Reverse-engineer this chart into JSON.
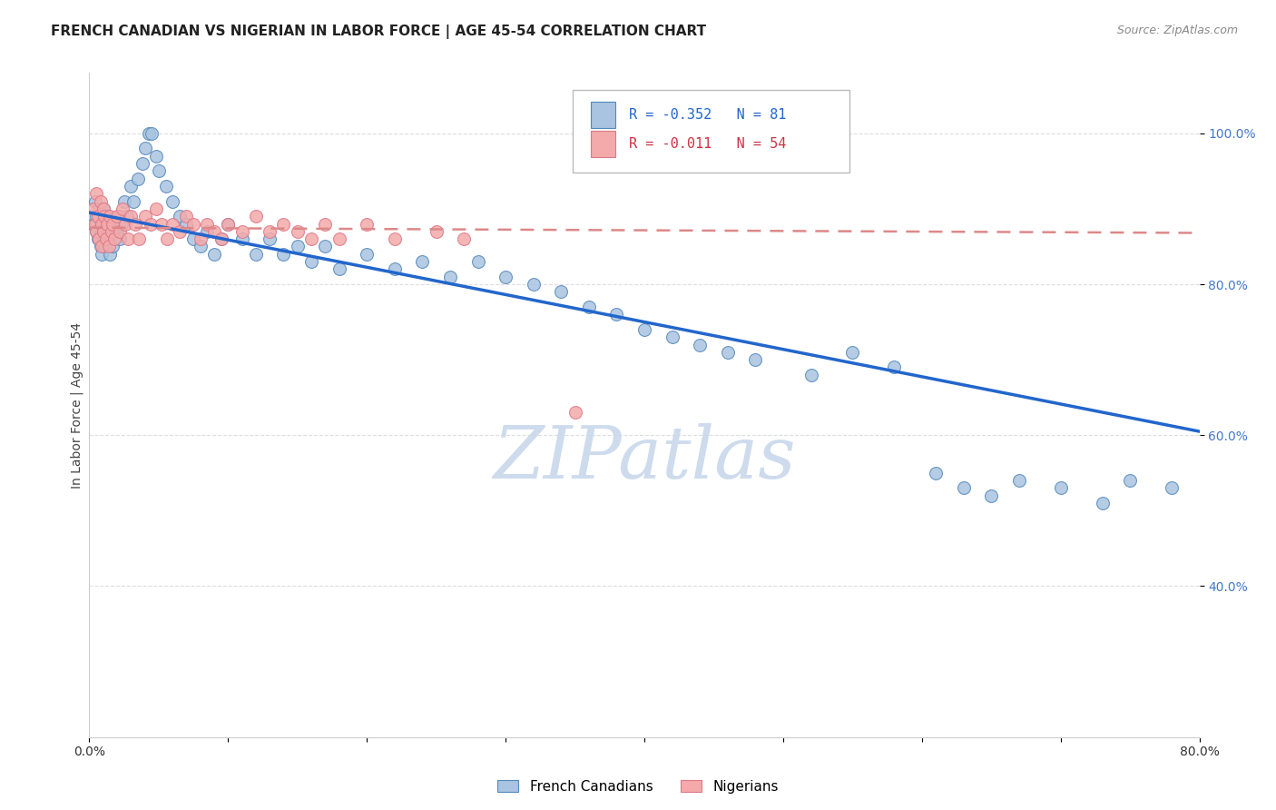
{
  "title": "FRENCH CANADIAN VS NIGERIAN IN LABOR FORCE | AGE 45-54 CORRELATION CHART",
  "source": "Source: ZipAtlas.com",
  "ylabel": "In Labor Force | Age 45-54",
  "xlim": [
    0.0,
    0.8
  ],
  "ylim": [
    0.2,
    1.08
  ],
  "blue_R": -0.352,
  "blue_N": 81,
  "pink_R": -0.011,
  "pink_N": 54,
  "blue_color": "#A8C4E0",
  "pink_color": "#F4AAAA",
  "blue_edge_color": "#5588BB",
  "pink_edge_color": "#DD7788",
  "blue_line_color": "#2266CC",
  "pink_line_color": "#DD8888",
  "watermark_color": "#C8D8EC",
  "legend_label_blue": "French Canadians",
  "legend_label_pink": "Nigerians",
  "blue_scatter_x": [
    0.003,
    0.004,
    0.005,
    0.005,
    0.006,
    0.007,
    0.008,
    0.008,
    0.009,
    0.009,
    0.01,
    0.01,
    0.011,
    0.011,
    0.012,
    0.013,
    0.014,
    0.015,
    0.015,
    0.016,
    0.017,
    0.018,
    0.02,
    0.021,
    0.022,
    0.023,
    0.025,
    0.027,
    0.03,
    0.032,
    0.035,
    0.038,
    0.04,
    0.043,
    0.045,
    0.048,
    0.05,
    0.055,
    0.06,
    0.065,
    0.07,
    0.075,
    0.08,
    0.085,
    0.09,
    0.095,
    0.1,
    0.11,
    0.12,
    0.13,
    0.14,
    0.15,
    0.16,
    0.17,
    0.18,
    0.2,
    0.22,
    0.24,
    0.26,
    0.28,
    0.3,
    0.32,
    0.34,
    0.36,
    0.38,
    0.4,
    0.42,
    0.44,
    0.46,
    0.48,
    0.52,
    0.55,
    0.58,
    0.61,
    0.63,
    0.65,
    0.67,
    0.7,
    0.73,
    0.75,
    0.78
  ],
  "blue_scatter_y": [
    0.88,
    0.91,
    0.87,
    0.89,
    0.86,
    0.9,
    0.88,
    0.85,
    0.87,
    0.84,
    0.9,
    0.86,
    0.88,
    0.85,
    0.87,
    0.89,
    0.86,
    0.88,
    0.84,
    0.87,
    0.85,
    0.88,
    0.87,
    0.89,
    0.86,
    0.88,
    0.91,
    0.89,
    0.93,
    0.91,
    0.94,
    0.96,
    0.98,
    1.0,
    1.0,
    0.97,
    0.95,
    0.93,
    0.91,
    0.89,
    0.88,
    0.86,
    0.85,
    0.87,
    0.84,
    0.86,
    0.88,
    0.86,
    0.84,
    0.86,
    0.84,
    0.85,
    0.83,
    0.85,
    0.82,
    0.84,
    0.82,
    0.83,
    0.81,
    0.83,
    0.81,
    0.8,
    0.79,
    0.77,
    0.76,
    0.74,
    0.73,
    0.72,
    0.71,
    0.7,
    0.68,
    0.71,
    0.69,
    0.55,
    0.53,
    0.52,
    0.54,
    0.53,
    0.51,
    0.54,
    0.53
  ],
  "pink_scatter_x": [
    0.003,
    0.004,
    0.005,
    0.005,
    0.006,
    0.007,
    0.008,
    0.009,
    0.009,
    0.01,
    0.01,
    0.011,
    0.012,
    0.013,
    0.014,
    0.015,
    0.016,
    0.017,
    0.018,
    0.02,
    0.022,
    0.024,
    0.026,
    0.028,
    0.03,
    0.033,
    0.036,
    0.04,
    0.044,
    0.048,
    0.052,
    0.056,
    0.06,
    0.065,
    0.07,
    0.075,
    0.08,
    0.085,
    0.09,
    0.095,
    0.1,
    0.11,
    0.12,
    0.13,
    0.14,
    0.15,
    0.16,
    0.17,
    0.18,
    0.2,
    0.22,
    0.25,
    0.27,
    0.35
  ],
  "pink_scatter_y": [
    0.9,
    0.88,
    0.92,
    0.87,
    0.89,
    0.86,
    0.91,
    0.88,
    0.85,
    0.9,
    0.87,
    0.89,
    0.86,
    0.88,
    0.85,
    0.89,
    0.87,
    0.88,
    0.86,
    0.89,
    0.87,
    0.9,
    0.88,
    0.86,
    0.89,
    0.88,
    0.86,
    0.89,
    0.88,
    0.9,
    0.88,
    0.86,
    0.88,
    0.87,
    0.89,
    0.88,
    0.86,
    0.88,
    0.87,
    0.86,
    0.88,
    0.87,
    0.89,
    0.87,
    0.88,
    0.87,
    0.86,
    0.88,
    0.86,
    0.88,
    0.86,
    0.87,
    0.86,
    0.63
  ],
  "blue_trendline_x": [
    0.0,
    0.8
  ],
  "blue_trendline_y": [
    0.895,
    0.605
  ],
  "pink_trendline_x": [
    0.0,
    0.8
  ],
  "pink_trendline_y": [
    0.875,
    0.868
  ],
  "yticks": [
    0.4,
    0.6,
    0.8,
    1.0
  ],
  "ytick_labels": [
    "40.0%",
    "60.0%",
    "80.0%",
    "100.0%"
  ],
  "xticks": [
    0.0,
    0.1,
    0.2,
    0.3,
    0.4,
    0.5,
    0.6,
    0.7,
    0.8
  ],
  "xtick_labels": [
    "0.0%",
    "",
    "",
    "",
    "",
    "",
    "",
    "",
    "80.0%"
  ],
  "grid_color": "#DDDDDD",
  "background_color": "#FFFFFF",
  "tick_color": "#4477CC"
}
